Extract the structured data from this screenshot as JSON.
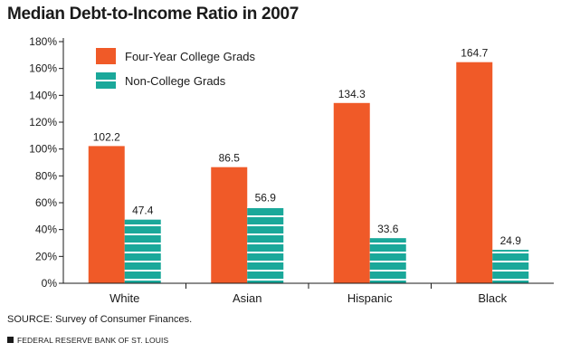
{
  "chart_data": {
    "type": "bar",
    "title": "Median Debt-to-Income Ratio in 2007",
    "categories": [
      "White",
      "Asian",
      "Hispanic",
      "Black"
    ],
    "series": [
      {
        "name": "Four-Year College Grads",
        "values": [
          102.2,
          86.5,
          134.3,
          164.7
        ],
        "labels": [
          "102.2",
          "86.5",
          "134.3",
          "164.7"
        ],
        "color": "#f05a28",
        "pattern": "solid"
      },
      {
        "name": "Non-College Grads",
        "values": [
          47.4,
          56.9,
          33.6,
          24.9
        ],
        "labels": [
          "47.4",
          "56.9",
          "33.6",
          "24.9"
        ],
        "color": "#1aa89a",
        "pattern": "striped"
      }
    ],
    "ylim": [
      0,
      180
    ],
    "yticks": [
      0,
      20,
      40,
      60,
      80,
      100,
      120,
      140,
      160,
      180
    ],
    "ytick_labels": [
      "0%",
      "20%",
      "40%",
      "60%",
      "80%",
      "100%",
      "120%",
      "140%",
      "160%",
      "180%"
    ],
    "xlabel": "",
    "ylabel": "",
    "grid": false,
    "legend_position": "top-left"
  },
  "source_note": "SOURCE: Survey of Consumer Finances.",
  "credit": "FEDERAL RESERVE BANK OF ST. LOUIS"
}
